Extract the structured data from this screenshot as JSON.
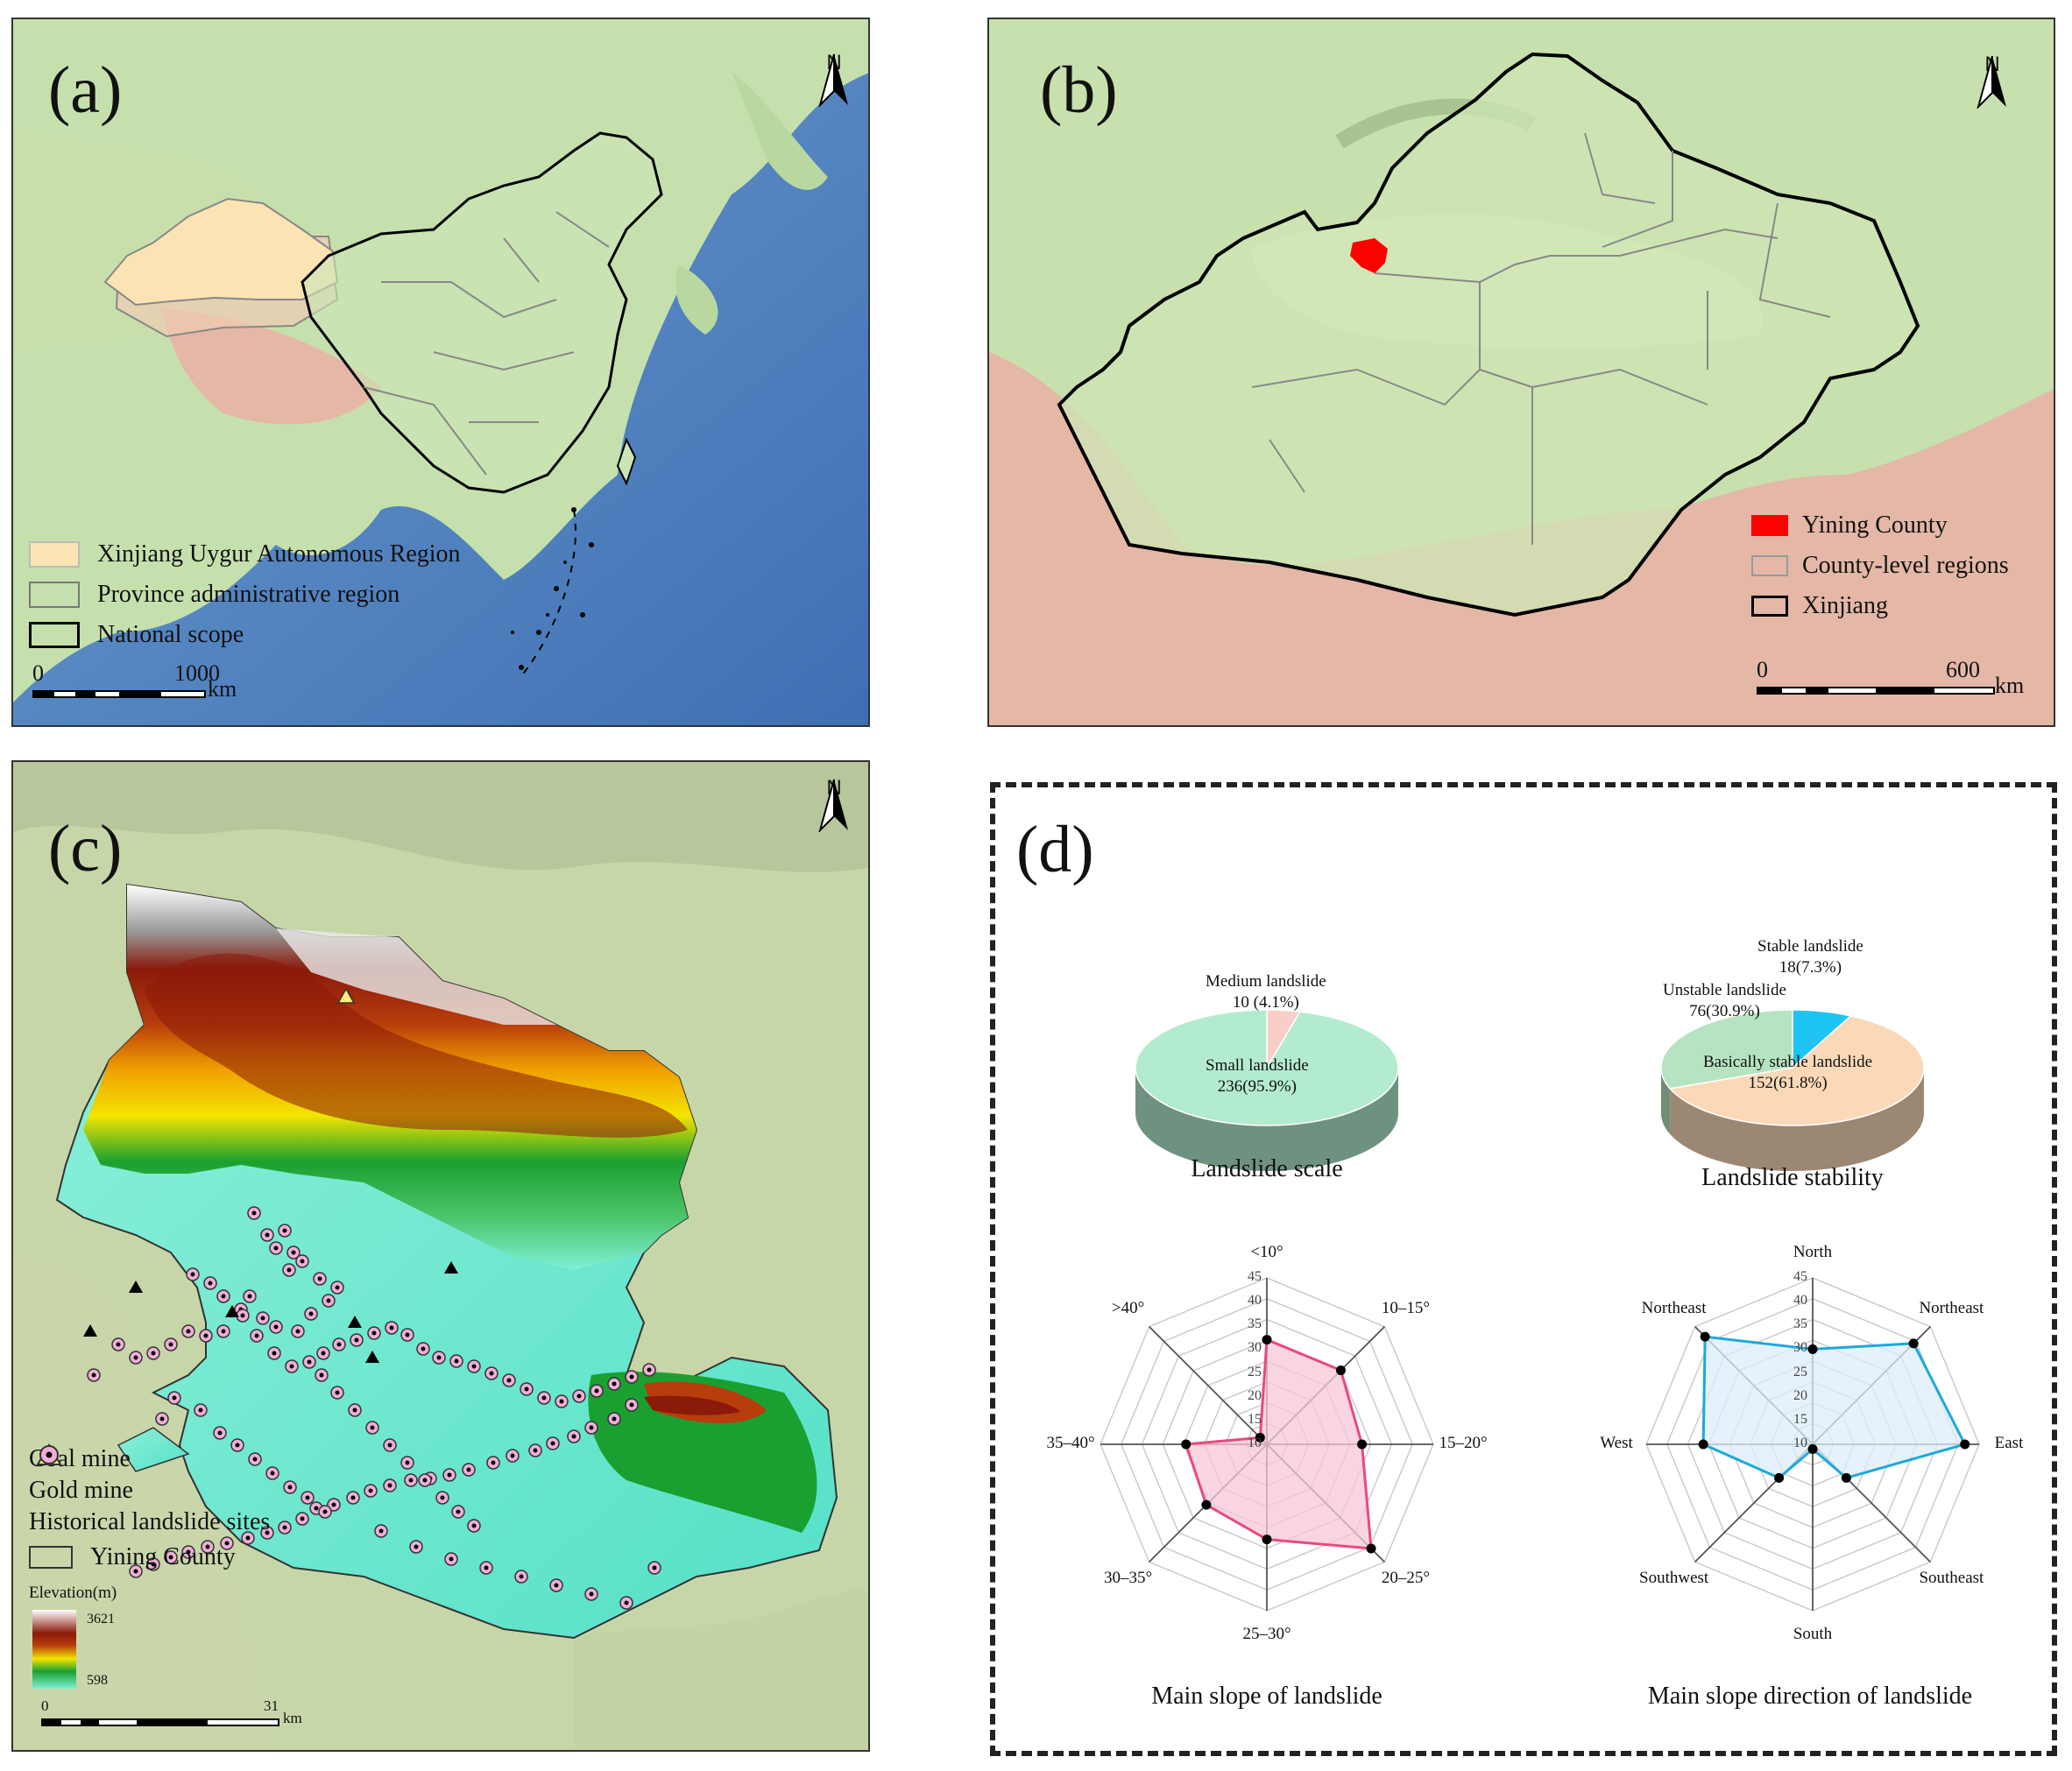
{
  "panel_a": {
    "label": "(a)",
    "north": "N",
    "legend": [
      {
        "label": "Xinjiang Uygur Autonomous Region",
        "fill": "#fbe3b3",
        "stroke": "#bbbbbb"
      },
      {
        "label": "Province administrative region",
        "fill": "none",
        "stroke": "#777777"
      },
      {
        "label": "National scope",
        "fill": "none",
        "stroke": "#000000"
      }
    ],
    "scale": {
      "start": "0",
      "end": "1000",
      "unit": "km"
    }
  },
  "panel_b": {
    "label": "(b)",
    "north": "N",
    "legend": [
      {
        "label": "Yining County",
        "fill": "#ff0000",
        "stroke": "#ff0000"
      },
      {
        "label": "County-level regions",
        "fill": "none",
        "stroke": "#999999"
      },
      {
        "label": "Xinjiang",
        "fill": "none",
        "stroke": "#000000"
      }
    ],
    "scale": {
      "start": "0",
      "end": "600",
      "unit": "km"
    }
  },
  "panel_c": {
    "label": "(c)",
    "north": "N",
    "legend": [
      {
        "label": "Coal mine",
        "symbol": "black-triangle"
      },
      {
        "label": "Gold mine",
        "symbol": "yellow-triangle"
      },
      {
        "label": "Historical landslide sites",
        "symbol": "pink-circle"
      },
      {
        "label": "Yining County",
        "symbol": "outline-box"
      }
    ],
    "elevation": {
      "title": "Elevation(m)",
      "max": "3621",
      "min": "598"
    },
    "scale": {
      "start": "0",
      "end": "31",
      "unit": "km"
    }
  },
  "panel_d": {
    "label": "(d)",
    "chart_data": [
      {
        "type": "pie",
        "title": "Landslide scale",
        "slices": [
          {
            "name": "Medium landslide",
            "value": 10,
            "label": "10 (4.1%)",
            "color": "#f8cfc8"
          },
          {
            "name": "Small landslide",
            "value": 236,
            "label": "236(95.9%)",
            "color": "#b3ebcf"
          }
        ]
      },
      {
        "type": "pie",
        "title": "Landslide stability",
        "slices": [
          {
            "name": "Stable landslide",
            "value": 18,
            "label": "18(7.3%)",
            "color": "#1ec4f1"
          },
          {
            "name": "Basically stable landslide",
            "value": 152,
            "label": "152(61.8%)",
            "color": "#fbd9b8"
          },
          {
            "name": "Unstable landslide",
            "value": 76,
            "label": "76(30.9%)",
            "color": "#b6e3c1"
          }
        ]
      },
      {
        "type": "radar",
        "title": "Main slope of landslide",
        "categories": [
          "<10°",
          "10–15°",
          "15–20°",
          "20–25°",
          "25–30°",
          "30–35°",
          "35–40°",
          ">40°"
        ],
        "values": [
          32,
          32,
          30,
          41,
          30,
          28,
          27,
          12
        ],
        "rlim": [
          10,
          45
        ],
        "ticks": [
          "10",
          "15",
          "20",
          "25",
          "30",
          "35",
          "40",
          "45"
        ],
        "color": "#e84a7c",
        "fill": "#f7c6d8"
      },
      {
        "type": "radar",
        "title": "Main slope direction of landslide",
        "categories": [
          "North",
          "Northeast",
          "East",
          "Southeast",
          "South",
          "Southwest",
          "West",
          "Northeast"
        ],
        "values": [
          30,
          40,
          42,
          20,
          11,
          20,
          33,
          42
        ],
        "rlim": [
          10,
          45
        ],
        "ticks": [
          "10",
          "15",
          "20",
          "25",
          "30",
          "35",
          "40",
          "45"
        ],
        "color": "#1ea9d8",
        "fill": "#dceefa"
      }
    ]
  },
  "colors": {
    "ocean": "#6fa3cf",
    "land": "#bfdcaa",
    "highland": "#e2b6a6"
  }
}
